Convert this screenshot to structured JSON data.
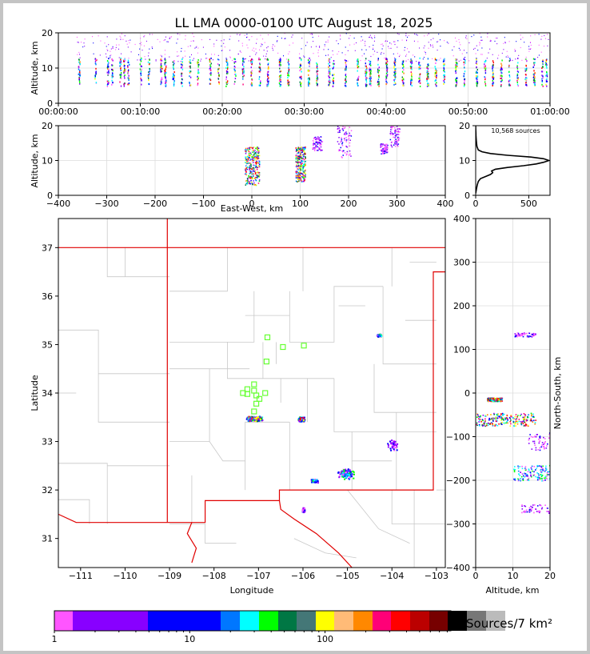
{
  "title": "LL LMA 0000-0100 UTC August 18, 2025",
  "colorbar_label": "Sources/7 km²",
  "colorbar": {
    "tick_labels": [
      "1",
      "10",
      "100"
    ],
    "colors": [
      "#ff55ff",
      "#8800ff",
      "#8800ff",
      "#0000ff",
      "#0000ff",
      "#0077ff",
      "#00ffff",
      "#00ff00",
      "#007744",
      "#447777",
      "#ffff00",
      "#ffbb77",
      "#ff8800",
      "#ff0077",
      "#ff0000",
      "#bb0000",
      "#770000",
      "#000000",
      "#777777",
      "#bbbbbb",
      "#ffffff"
    ]
  },
  "chart_data": [
    {
      "name": "altitude-time",
      "type": "scatter",
      "ylabel": "Altitude, km",
      "xlabel": "",
      "ylim": [
        0,
        20
      ],
      "xlim_minutes": [
        0,
        60
      ],
      "x_tick_labels": [
        "00:00:00",
        "00:10:00",
        "00:20:00",
        "00:30:00",
        "00:40:00",
        "00:50:00",
        "01:00:00"
      ],
      "y_tick_labels": [
        "0",
        "10",
        "20"
      ],
      "grid": true,
      "columns_minutes": [
        2.5,
        4.5,
        6,
        6.5,
        7.5,
        8,
        8.5,
        10,
        11,
        12.5,
        13,
        14,
        15,
        16,
        17,
        18.5,
        19.5,
        20.5,
        21.5,
        22.5,
        23.5,
        24.5,
        25.5,
        27,
        28,
        29.5,
        30.5,
        31.5,
        33,
        33.5,
        35,
        36.5,
        37.5,
        38,
        39,
        40,
        41,
        42,
        43,
        44,
        45,
        46,
        47,
        48.5,
        49.5,
        51,
        52,
        53,
        54,
        55,
        56,
        57,
        58,
        59,
        59.5
      ],
      "core_altitude_range_km": [
        5,
        13
      ]
    },
    {
      "name": "altitude-eastwest",
      "type": "scatter",
      "xlabel": "East-West, km",
      "ylabel": "Altitude, km",
      "xlim": [
        -400,
        400
      ],
      "ylim": [
        0,
        20
      ],
      "x_tick_labels": [
        "−400",
        "−300",
        "−200",
        "−100",
        "0",
        "100",
        "200",
        "300",
        "400"
      ],
      "y_tick_labels": [
        "0",
        "10",
        "20"
      ],
      "grid": true,
      "clusters": [
        {
          "x_range": [
            -15,
            15
          ],
          "alt_range": [
            3,
            14
          ],
          "intensity": "high"
        },
        {
          "x_range": [
            90,
            110
          ],
          "alt_range": [
            4,
            14
          ],
          "intensity": "high"
        },
        {
          "x_range": [
            125,
            145
          ],
          "alt_range": [
            13,
            17
          ],
          "intensity": "low"
        },
        {
          "x_range": [
            175,
            205
          ],
          "alt_range": [
            11,
            20
          ],
          "intensity": "low"
        },
        {
          "x_range": [
            265,
            280
          ],
          "alt_range": [
            12,
            15
          ],
          "intensity": "low"
        },
        {
          "x_range": [
            285,
            305
          ],
          "alt_range": [
            14,
            20
          ],
          "intensity": "low"
        }
      ]
    },
    {
      "name": "altitude-histogram",
      "type": "line",
      "annotation": "10,568 sources",
      "xlim": [
        0,
        700
      ],
      "ylim": [
        0,
        20
      ],
      "x_tick_labels": [
        "0",
        "500"
      ],
      "y_tick_labels": [
        "0",
        "10",
        "20"
      ],
      "grid": true,
      "points": [
        [
          0,
          0.5
        ],
        [
          8,
          2
        ],
        [
          15,
          3
        ],
        [
          25,
          4
        ],
        [
          45,
          4.8
        ],
        [
          100,
          5.5
        ],
        [
          140,
          6
        ],
        [
          160,
          6.5
        ],
        [
          150,
          7
        ],
        [
          185,
          7.5
        ],
        [
          300,
          8
        ],
        [
          450,
          8.5
        ],
        [
          570,
          9
        ],
        [
          640,
          9.5
        ],
        [
          690,
          10
        ],
        [
          640,
          10.5
        ],
        [
          520,
          11
        ],
        [
          300,
          11.5
        ],
        [
          140,
          12
        ],
        [
          60,
          12.5
        ],
        [
          25,
          13
        ],
        [
          12,
          14
        ],
        [
          8,
          15
        ],
        [
          5,
          16
        ],
        [
          3,
          17
        ],
        [
          2,
          18
        ],
        [
          1,
          19
        ],
        [
          0,
          20
        ]
      ]
    },
    {
      "name": "plan-view-map",
      "type": "scatter",
      "xlabel": "Longitude",
      "ylabel": "Latitude",
      "xlim": [
        -111.5,
        -102.8
      ],
      "ylim": [
        30.4,
        37.6
      ],
      "x_tick_labels": [
        "−111",
        "−110",
        "−109",
        "−108",
        "−107",
        "−106",
        "−105",
        "−104",
        "−103"
      ],
      "y_tick_labels": [
        "31",
        "32",
        "33",
        "34",
        "35",
        "36",
        "37"
      ],
      "stations": [
        [
          -106.8,
          35.15
        ],
        [
          -106.45,
          34.95
        ],
        [
          -105.98,
          34.98
        ],
        [
          -106.82,
          34.65
        ],
        [
          -107.1,
          34.18
        ],
        [
          -107.25,
          34.08
        ],
        [
          -107.1,
          34.05
        ],
        [
          -107.35,
          34.0
        ],
        [
          -107.25,
          33.98
        ],
        [
          -107.05,
          33.95
        ],
        [
          -106.85,
          34.0
        ],
        [
          -107.05,
          33.78
        ],
        [
          -107.1,
          33.62
        ],
        [
          -106.98,
          33.88
        ]
      ],
      "clusters": [
        {
          "lon": -107.1,
          "lat": 33.48,
          "spread": [
            0.2,
            0.06
          ],
          "intensity": "high"
        },
        {
          "lon": -106.05,
          "lat": 33.47,
          "spread": [
            0.08,
            0.05
          ],
          "intensity": "high"
        },
        {
          "lon": -105.05,
          "lat": 32.35,
          "spread": [
            0.2,
            0.12
          ],
          "intensity": "mid"
        },
        {
          "lon": -105.75,
          "lat": 32.2,
          "spread": [
            0.08,
            0.04
          ],
          "intensity": "mid"
        },
        {
          "lon": -104.0,
          "lat": 32.95,
          "spread": [
            0.12,
            0.12
          ],
          "intensity": "low"
        },
        {
          "lon": -104.3,
          "lat": 35.2,
          "spread": [
            0.05,
            0.03
          ],
          "intensity": "mid"
        },
        {
          "lon": -106.0,
          "lat": 31.6,
          "spread": [
            0.04,
            0.05
          ],
          "intensity": "low"
        }
      ]
    },
    {
      "name": "northsouth-altitude",
      "type": "scatter",
      "xlabel": "Altitude, km",
      "ylabel": "North-South, km",
      "xlim": [
        0,
        20
      ],
      "ylim": [
        -400,
        400
      ],
      "x_tick_labels": [
        "0",
        "10",
        "20"
      ],
      "y_tick_labels": [
        "−400",
        "−300",
        "−200",
        "−100",
        "0",
        "100",
        "200",
        "300",
        "400"
      ],
      "grid": true,
      "clusters": [
        {
          "alt_range": [
            3,
            7
          ],
          "y_range": [
            -18,
            -10
          ],
          "intensity": "high"
        },
        {
          "alt_range": [
            0,
            16
          ],
          "y_range": [
            -75,
            -45
          ],
          "intensity": "high"
        },
        {
          "alt_range": [
            10,
            16
          ],
          "y_range": [
            130,
            140
          ],
          "intensity": "low"
        },
        {
          "alt_range": [
            14,
            20
          ],
          "y_range": [
            -130,
            -90
          ],
          "intensity": "low"
        },
        {
          "alt_range": [
            10,
            20
          ],
          "y_range": [
            -200,
            -165
          ],
          "intensity": "mid"
        },
        {
          "alt_range": [
            12,
            20
          ],
          "y_range": [
            -275,
            -255
          ],
          "intensity": "low"
        }
      ]
    }
  ]
}
